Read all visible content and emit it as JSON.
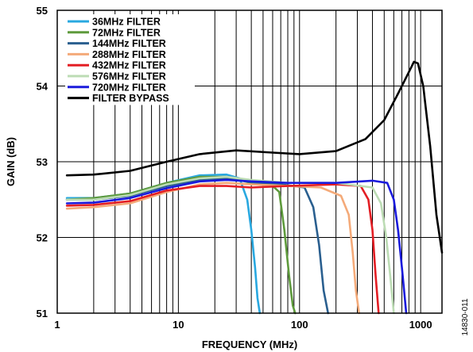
{
  "figure_id": "14830-011",
  "chart_data": {
    "type": "line",
    "xlabel": "FREQUENCY (MHz)",
    "ylabel": "GAIN (dB)",
    "x_scale": "log",
    "xlim": [
      1,
      1500
    ],
    "ylim": [
      51,
      55
    ],
    "x_ticks": [
      1,
      10,
      100,
      1000
    ],
    "x_tick_labels": [
      "1",
      "10",
      "100",
      "1000"
    ],
    "y_ticks": [
      51,
      52,
      53,
      54,
      55
    ],
    "y_tick_labels": [
      "51",
      "52",
      "53",
      "54",
      "55"
    ],
    "grid": true,
    "legend_position": "top-left",
    "series": [
      {
        "name": "36MHz FILTER",
        "color": "#29a8e0",
        "x": [
          1.2,
          2,
          4,
          8,
          15,
          25,
          32,
          37,
          40,
          43,
          45,
          47
        ],
        "y": [
          52.52,
          52.52,
          52.58,
          52.72,
          52.82,
          52.83,
          52.78,
          52.5,
          52.1,
          51.6,
          51.2,
          51.0
        ]
      },
      {
        "name": "72MHz FILTER",
        "color": "#5e9a3c",
        "x": [
          1.2,
          2,
          4,
          8,
          15,
          25,
          40,
          60,
          68,
          75,
          82,
          88,
          92
        ],
        "y": [
          52.5,
          52.52,
          52.58,
          52.72,
          52.8,
          52.8,
          52.72,
          52.68,
          52.6,
          52.1,
          51.5,
          51.1,
          51.0
        ]
      },
      {
        "name": "144MHz FILTER",
        "color": "#2a5f8f",
        "x": [
          1.2,
          2,
          4,
          8,
          15,
          25,
          40,
          70,
          110,
          130,
          145,
          158,
          172
        ],
        "y": [
          52.5,
          52.5,
          52.55,
          52.68,
          52.76,
          52.78,
          52.73,
          52.7,
          52.66,
          52.4,
          51.9,
          51.3,
          51.0
        ]
      },
      {
        "name": "288MHz FILTER",
        "color": "#f4aa79",
        "x": [
          1.2,
          2,
          4,
          8,
          15,
          25,
          40,
          80,
          150,
          220,
          255,
          275,
          292,
          310
        ],
        "y": [
          52.38,
          52.4,
          52.45,
          52.6,
          52.7,
          52.72,
          52.7,
          52.68,
          52.66,
          52.55,
          52.3,
          51.8,
          51.3,
          51.0
        ]
      },
      {
        "name": "432MHz FILTER",
        "color": "#e31e24",
        "x": [
          1.2,
          2,
          4,
          8,
          15,
          25,
          40,
          80,
          200,
          320,
          370,
          400,
          425,
          450
        ],
        "y": [
          52.42,
          52.43,
          52.48,
          52.62,
          52.68,
          52.68,
          52.66,
          52.68,
          52.7,
          52.68,
          52.5,
          52.1,
          51.5,
          51.0
        ]
      },
      {
        "name": "576MHz FILTER",
        "color": "#bcdcb4",
        "x": [
          1.2,
          2,
          4,
          8,
          15,
          25,
          40,
          80,
          200,
          400,
          470,
          520,
          560,
          600
        ],
        "y": [
          52.5,
          52.5,
          52.56,
          52.7,
          52.78,
          52.8,
          52.76,
          52.72,
          52.72,
          52.66,
          52.45,
          52.0,
          51.5,
          51.0
        ]
      },
      {
        "name": "720MHz FILTER",
        "color": "#1a1adc",
        "x": [
          1.2,
          2,
          4,
          8,
          15,
          25,
          40,
          80,
          200,
          400,
          530,
          600,
          650,
          700,
          760
        ],
        "y": [
          52.45,
          52.46,
          52.52,
          52.65,
          52.74,
          52.76,
          52.74,
          52.72,
          52.72,
          52.75,
          52.72,
          52.5,
          52.1,
          51.6,
          51.0
        ]
      },
      {
        "name": "FILTER BYPASS",
        "color": "#000000",
        "x": [
          1.2,
          2,
          4,
          8,
          15,
          30,
          60,
          100,
          200,
          350,
          500,
          650,
          780,
          880,
          950,
          1050,
          1200,
          1350,
          1500
        ],
        "y": [
          52.82,
          52.83,
          52.88,
          53.0,
          53.1,
          53.15,
          53.12,
          53.1,
          53.14,
          53.3,
          53.55,
          53.9,
          54.15,
          54.32,
          54.3,
          54.0,
          53.2,
          52.3,
          51.8
        ]
      }
    ]
  }
}
